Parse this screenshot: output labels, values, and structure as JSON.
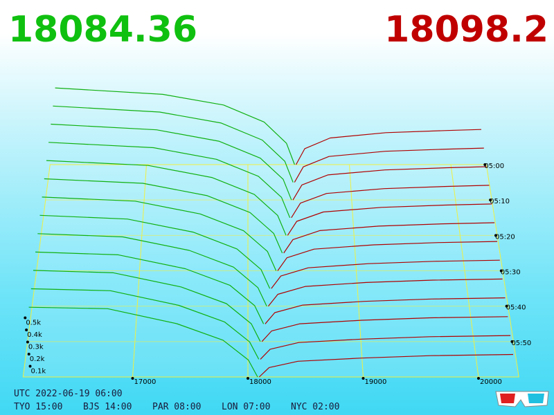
{
  "header": {
    "bid_price": "18084.36",
    "ask_price": "18098.2"
  },
  "chart_data": {
    "type": "depth3d",
    "bid_color": "#10b010",
    "ask_color": "#b00000",
    "xlim": [
      16050,
      20350
    ],
    "xticks": [
      17000,
      18000,
      19000,
      20000
    ],
    "tlim": [
      0,
      60
    ],
    "tticks": [
      {
        "value": 0,
        "label": "05:00"
      },
      {
        "value": 10,
        "label": "05:10"
      },
      {
        "value": 20,
        "label": "05:20"
      },
      {
        "value": 30,
        "label": "05:30"
      },
      {
        "value": 40,
        "label": "05:40"
      },
      {
        "value": 50,
        "label": "05:50"
      }
    ],
    "zticks": [
      {
        "value": 100,
        "label": "0.1k"
      },
      {
        "value": 200,
        "label": "0.2k"
      },
      {
        "value": 300,
        "label": "0.3k"
      },
      {
        "value": 400,
        "label": "0.4k"
      },
      {
        "value": 500,
        "label": "0.5k"
      }
    ],
    "snapshots": [
      {
        "t": 0,
        "bid_prices": [
          18460,
          18380,
          18160,
          17760,
          17160,
          16100
        ],
        "bid_volumes": [
          0,
          200,
          400,
          560,
          660,
          720
        ],
        "ask_prices": [
          18474,
          18560,
          18810,
          19360,
          19960,
          20300
        ],
        "ask_volumes": [
          0,
          150,
          250,
          300,
          320,
          330
        ]
      },
      {
        "t": 5,
        "bid_prices": [
          18440,
          18360,
          18140,
          17740,
          17140,
          16100
        ],
        "bid_volumes": [
          0,
          195,
          392,
          550,
          652,
          708
        ],
        "ask_prices": [
          18454,
          18540,
          18790,
          19340,
          19940,
          20300
        ],
        "ask_volumes": [
          0,
          144,
          240,
          288,
          308,
          318
        ]
      },
      {
        "t": 10,
        "bid_prices": [
          18420,
          18340,
          18120,
          17720,
          17120,
          16100
        ],
        "bid_volumes": [
          0,
          190,
          384,
          540,
          644,
          696
        ],
        "ask_prices": [
          18434,
          18520,
          18770,
          19320,
          19920,
          20300
        ],
        "ask_volumes": [
          0,
          138,
          230,
          276,
          296,
          306
        ]
      },
      {
        "t": 15,
        "bid_prices": [
          18400,
          18320,
          18100,
          17700,
          17100,
          16100
        ],
        "bid_volumes": [
          0,
          185,
          376,
          530,
          636,
          684
        ],
        "ask_prices": [
          18414,
          18500,
          18750,
          19300,
          19900,
          20300
        ],
        "ask_volumes": [
          0,
          132,
          220,
          264,
          284,
          294
        ]
      },
      {
        "t": 20,
        "bid_prices": [
          18360,
          18280,
          18060,
          17660,
          17060,
          16100
        ],
        "bid_volumes": [
          0,
          180,
          368,
          520,
          628,
          672
        ],
        "ask_prices": [
          18374,
          18460,
          18710,
          19260,
          19860,
          20300
        ],
        "ask_volumes": [
          0,
          126,
          210,
          252,
          272,
          282
        ]
      },
      {
        "t": 25,
        "bid_prices": [
          18320,
          18240,
          18020,
          17620,
          17020,
          16100
        ],
        "bid_volumes": [
          0,
          175,
          360,
          510,
          620,
          660
        ],
        "ask_prices": [
          18334,
          18420,
          18670,
          19220,
          19820,
          20300
        ],
        "ask_volumes": [
          0,
          120,
          200,
          240,
          260,
          270
        ]
      },
      {
        "t": 30,
        "bid_prices": [
          18260,
          18180,
          17960,
          17560,
          16960,
          16100
        ],
        "bid_volumes": [
          0,
          170,
          352,
          500,
          612,
          648
        ],
        "ask_prices": [
          18274,
          18360,
          18610,
          19160,
          19760,
          20300
        ],
        "ask_volumes": [
          0,
          114,
          190,
          228,
          248,
          258
        ]
      },
      {
        "t": 35,
        "bid_prices": [
          18200,
          18120,
          17900,
          17500,
          16900,
          16100
        ],
        "bid_volumes": [
          0,
          165,
          344,
          490,
          604,
          636
        ],
        "ask_prices": [
          18214,
          18300,
          18550,
          19100,
          19700,
          20300
        ],
        "ask_volumes": [
          0,
          108,
          180,
          216,
          236,
          246
        ]
      },
      {
        "t": 40,
        "bid_prices": [
          18170,
          18090,
          17870,
          17470,
          16870,
          16100
        ],
        "bid_volumes": [
          0,
          160,
          336,
          480,
          596,
          624
        ],
        "ask_prices": [
          18184,
          18270,
          18520,
          19070,
          19670,
          20300
        ],
        "ask_volumes": [
          0,
          102,
          170,
          204,
          224,
          234
        ]
      },
      {
        "t": 45,
        "bid_prices": [
          18140,
          18060,
          17840,
          17440,
          16840,
          16100
        ],
        "bid_volumes": [
          0,
          155,
          328,
          470,
          588,
          612
        ],
        "ask_prices": [
          18154,
          18240,
          18490,
          19040,
          19640,
          20300
        ],
        "ask_volumes": [
          0,
          96,
          160,
          192,
          212,
          222
        ]
      },
      {
        "t": 50,
        "bid_prices": [
          18110,
          18030,
          17810,
          17410,
          16810,
          16100
        ],
        "bid_volumes": [
          0,
          150,
          320,
          460,
          580,
          600
        ],
        "ask_prices": [
          18124,
          18210,
          18460,
          19010,
          19610,
          20300
        ],
        "ask_volumes": [
          0,
          90,
          150,
          180,
          200,
          210
        ]
      },
      {
        "t": 55,
        "bid_prices": [
          18095,
          18015,
          17795,
          17395,
          16795,
          16100
        ],
        "bid_volumes": [
          0,
          145,
          312,
          450,
          572,
          588
        ],
        "ask_prices": [
          18109,
          18195,
          18445,
          18995,
          19595,
          20300
        ],
        "ask_volumes": [
          0,
          84,
          140,
          168,
          188,
          198
        ]
      },
      {
        "t": 60,
        "bid_prices": [
          18084,
          18004,
          17784,
          17384,
          16784,
          16100
        ],
        "bid_volumes": [
          0,
          140,
          304,
          440,
          564,
          576
        ],
        "ask_prices": [
          18098,
          18184,
          18434,
          18984,
          19584,
          20300
        ],
        "ask_volumes": [
          0,
          78,
          130,
          156,
          176,
          186
        ]
      }
    ]
  },
  "footer": {
    "utc": "UTC 2022-06-19 06:00",
    "zones": [
      "TYO 15:00",
      "BJS 14:00",
      "PAR 08:00",
      "LON 07:00",
      "NYC 02:00"
    ]
  }
}
